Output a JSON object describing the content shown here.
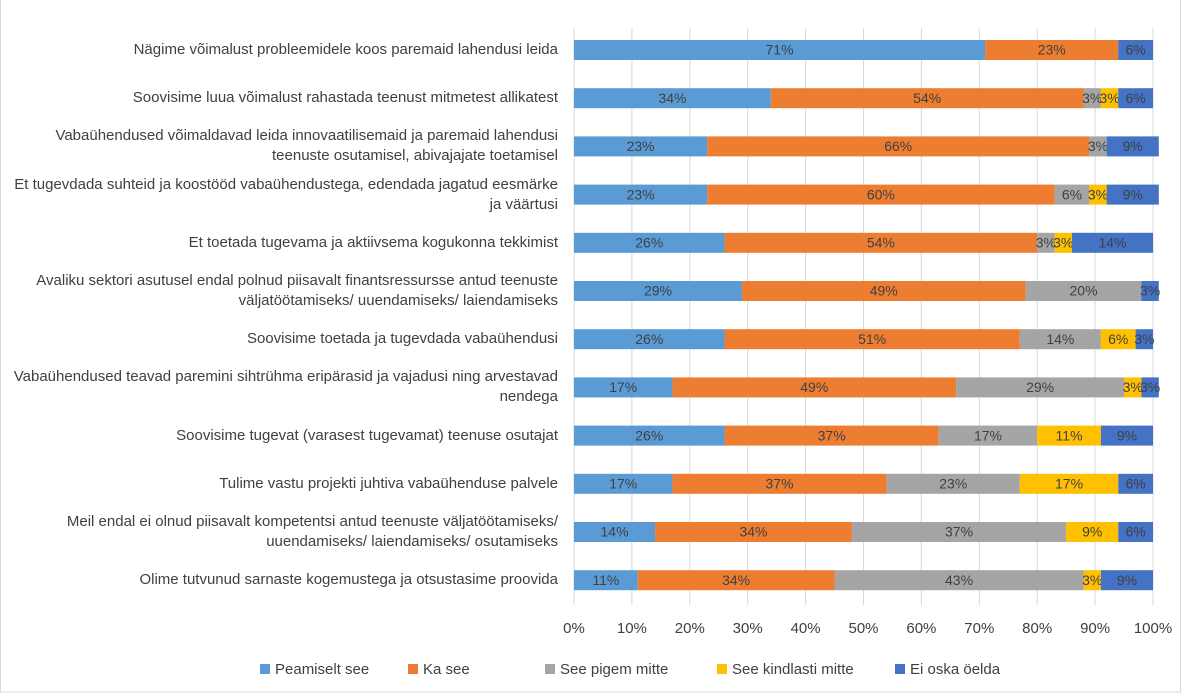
{
  "chart_data": {
    "type": "stacked_barh",
    "categories": [
      "Nägime võimalust probleemidele koos paremaid lahendusi leida",
      "Soovisime luua võimalust rahastada teenust mitmetest allikatest",
      "Vabaühendused võimaldavad leida innovaatilisemaid ja paremaid lahendusi teenuste osutamisel, abivajajate toetamisel",
      "Et tugevdada suhteid ja koostööd vabaühendustega, edendada jagatud eesmärke ja väärtusi",
      "Et toetada tugevama ja aktiivsema kogukonna tekkimist",
      "Avaliku sektori asutusel endal polnud piisavalt finantsressursse antud teenuste väljatöötamiseks/ uuendamiseks/ laiendamiseks",
      "Soovisime toetada ja tugevdada vabaühendusi",
      "Vabaühendused teavad paremini sihtrühma eripärasid ja vajadusi ning arvestavad nendega",
      "Soovisime tugevat (varasest tugevamat) teenuse osutajat",
      "Tulime vastu projekti juhtiva vabaühenduse palvele",
      "Meil endal ei olnud piisavalt kompetentsi antud teenuste väljatöötamiseks/ uuendamiseks/ laiendamiseks/ osutamiseks",
      "Olime tutvunud sarnaste kogemustega ja otsustasime proovida"
    ],
    "series": [
      {
        "name": "Peamiselt see",
        "color": "#5b9bd5",
        "values": [
          71,
          34,
          23,
          23,
          26,
          29,
          26,
          17,
          26,
          17,
          14,
          11
        ],
        "value_labels": [
          "71%",
          "34%",
          "23%",
          "23%",
          "26%",
          "29%",
          "26%",
          "17%",
          "26%",
          "17%",
          "14%",
          "11%"
        ]
      },
      {
        "name": "Ka see",
        "color": "#ed7d31",
        "values": [
          23,
          54,
          66,
          60,
          54,
          49,
          51,
          49,
          37,
          37,
          34,
          34
        ],
        "value_labels": [
          "23%",
          "54%",
          "66%",
          "60%",
          "54%",
          "49%",
          "51%",
          "49%",
          "37%",
          "37%",
          "34%",
          "34%"
        ]
      },
      {
        "name": "See pigem mitte",
        "color": "#a5a5a5",
        "values": [
          0,
          3,
          3,
          6,
          3,
          20,
          14,
          29,
          17,
          23,
          37,
          43
        ],
        "value_labels": [
          null,
          "3%",
          "3%",
          "6%",
          "3%",
          "20%",
          "14%",
          "29%",
          "17%",
          "23%",
          "37%",
          "43%"
        ]
      },
      {
        "name": "See kindlasti mitte",
        "color": "#ffc000",
        "values": [
          0,
          3,
          0,
          3,
          3,
          0,
          6,
          3,
          11,
          17,
          9,
          3
        ],
        "value_labels": [
          null,
          "3%",
          null,
          "3%",
          "3%",
          null,
          "6%",
          "3%",
          "11%",
          "17%",
          "9%",
          "3%"
        ]
      },
      {
        "name": "Ei oska öelda",
        "color": "#4472c4",
        "values": [
          6,
          6,
          9,
          9,
          14,
          3,
          3,
          3,
          9,
          6,
          6,
          9
        ],
        "value_labels": [
          "6%",
          "6%",
          "9%",
          "9%",
          "14%",
          "3%",
          "3%",
          "3%",
          "9%",
          "6%",
          "6%",
          "9%"
        ]
      }
    ],
    "xlim": [
      0,
      100
    ],
    "xticks": [
      {
        "value": 0,
        "label": "0%"
      },
      {
        "value": 10,
        "label": "10%"
      },
      {
        "value": 20,
        "label": "20%"
      },
      {
        "value": 30,
        "label": "30%"
      },
      {
        "value": 40,
        "label": "40%"
      },
      {
        "value": 50,
        "label": "50%"
      },
      {
        "value": 60,
        "label": "60%"
      },
      {
        "value": 70,
        "label": "70%"
      },
      {
        "value": 80,
        "label": "80%"
      },
      {
        "value": 90,
        "label": "90%"
      },
      {
        "value": 100,
        "label": "100%"
      }
    ],
    "grid": true,
    "legend": "bottom"
  }
}
